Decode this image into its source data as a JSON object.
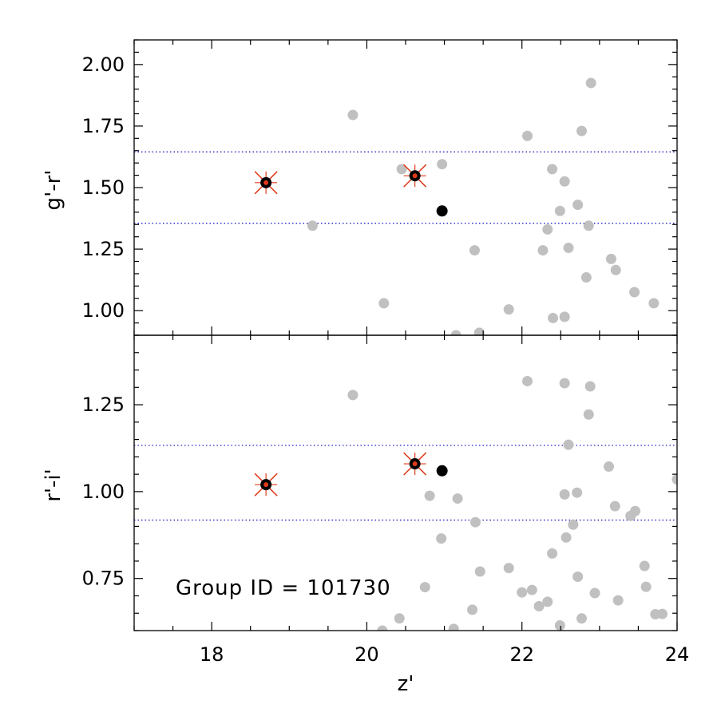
{
  "chart_data": {
    "type": "scatter",
    "xlabel": "z'",
    "annotation": "Group ID = 101730",
    "colors": {
      "field_points": "#c0c0c0",
      "group_points": "#000000",
      "marker_cross": "#e03a1a",
      "reference_lines": "#2020c8"
    },
    "xlim": [
      17,
      24
    ],
    "x_ticks": [
      {
        "value": 18,
        "label": "18"
      },
      {
        "value": 20,
        "label": "20"
      },
      {
        "value": 22,
        "label": "22"
      },
      {
        "value": 24,
        "label": "24"
      }
    ],
    "panels": [
      {
        "id": "top",
        "ylabel": "g'-r'",
        "ylim": [
          0.9,
          2.1
        ],
        "y_ticks": [
          {
            "value": 1.0,
            "label": "1.00"
          },
          {
            "value": 1.25,
            "label": "1.25"
          },
          {
            "value": 1.5,
            "label": "1.50"
          },
          {
            "value": 1.75,
            "label": "1.75"
          },
          {
            "value": 2.0,
            "label": "2.00"
          }
        ],
        "reference_lines": [
          1.355,
          1.645
        ],
        "field_points": [
          [
            19.82,
            1.795
          ],
          [
            19.3,
            1.345
          ],
          [
            20.22,
            1.03
          ],
          [
            20.45,
            1.575
          ],
          [
            20.97,
            1.595
          ],
          [
            21.39,
            1.245
          ],
          [
            21.15,
            0.9
          ],
          [
            21.45,
            0.91
          ],
          [
            21.83,
            1.005
          ],
          [
            22.07,
            1.71
          ],
          [
            22.27,
            1.245
          ],
          [
            22.33,
            1.33
          ],
          [
            22.39,
            1.575
          ],
          [
            22.4,
            0.97
          ],
          [
            22.49,
            1.405
          ],
          [
            22.55,
            1.525
          ],
          [
            22.55,
            0.975
          ],
          [
            22.6,
            1.255
          ],
          [
            22.72,
            1.43
          ],
          [
            22.77,
            1.73
          ],
          [
            22.83,
            1.135
          ],
          [
            22.86,
            1.345
          ],
          [
            22.89,
            1.925
          ],
          [
            23.15,
            1.21
          ],
          [
            23.21,
            1.165
          ],
          [
            23.45,
            1.075
          ],
          [
            23.7,
            1.03
          ]
        ],
        "group_points": [
          {
            "x": 18.7,
            "y": 1.52,
            "flagged": true
          },
          {
            "x": 20.62,
            "y": 1.548,
            "flagged": true
          },
          {
            "x": 20.97,
            "y": 1.405,
            "flagged": false
          }
        ]
      },
      {
        "id": "bottom",
        "ylabel": "r'-i'",
        "ylim": [
          0.6,
          1.45
        ],
        "y_ticks": [
          {
            "value": 0.75,
            "label": "0.75"
          },
          {
            "value": 1.0,
            "label": "1.00"
          },
          {
            "value": 1.25,
            "label": "1.25"
          }
        ],
        "reference_lines": [
          0.918,
          1.133
        ],
        "field_points": [
          [
            19.82,
            1.278
          ],
          [
            20.2,
            0.6
          ],
          [
            20.42,
            0.635
          ],
          [
            20.75,
            0.725
          ],
          [
            20.81,
            0.988
          ],
          [
            20.96,
            0.865
          ],
          [
            21.12,
            0.605
          ],
          [
            21.17,
            0.98
          ],
          [
            21.36,
            0.66
          ],
          [
            21.4,
            0.912
          ],
          [
            21.46,
            0.77
          ],
          [
            21.83,
            0.78
          ],
          [
            22.0,
            0.71
          ],
          [
            22.07,
            1.318
          ],
          [
            22.13,
            0.717
          ],
          [
            22.22,
            0.67
          ],
          [
            22.33,
            0.683
          ],
          [
            22.39,
            0.822
          ],
          [
            22.49,
            0.615
          ],
          [
            22.55,
            1.312
          ],
          [
            22.55,
            0.992
          ],
          [
            22.57,
            0.868
          ],
          [
            22.6,
            1.135
          ],
          [
            22.66,
            0.905
          ],
          [
            22.71,
            0.997
          ],
          [
            22.72,
            0.755
          ],
          [
            22.77,
            0.635
          ],
          [
            22.86,
            1.222
          ],
          [
            22.88,
            1.303
          ],
          [
            22.94,
            0.708
          ],
          [
            23.12,
            1.072
          ],
          [
            23.2,
            0.958
          ],
          [
            23.24,
            0.687
          ],
          [
            23.4,
            0.93
          ],
          [
            23.46,
            0.944
          ],
          [
            23.58,
            0.786
          ],
          [
            23.6,
            0.726
          ],
          [
            23.72,
            0.647
          ],
          [
            23.81,
            0.648
          ],
          [
            24.0,
            1.035
          ]
        ],
        "group_points": [
          {
            "x": 18.7,
            "y": 1.02,
            "flagged": true
          },
          {
            "x": 20.62,
            "y": 1.08,
            "flagged": true
          },
          {
            "x": 20.97,
            "y": 1.06,
            "flagged": false
          }
        ]
      }
    ]
  }
}
